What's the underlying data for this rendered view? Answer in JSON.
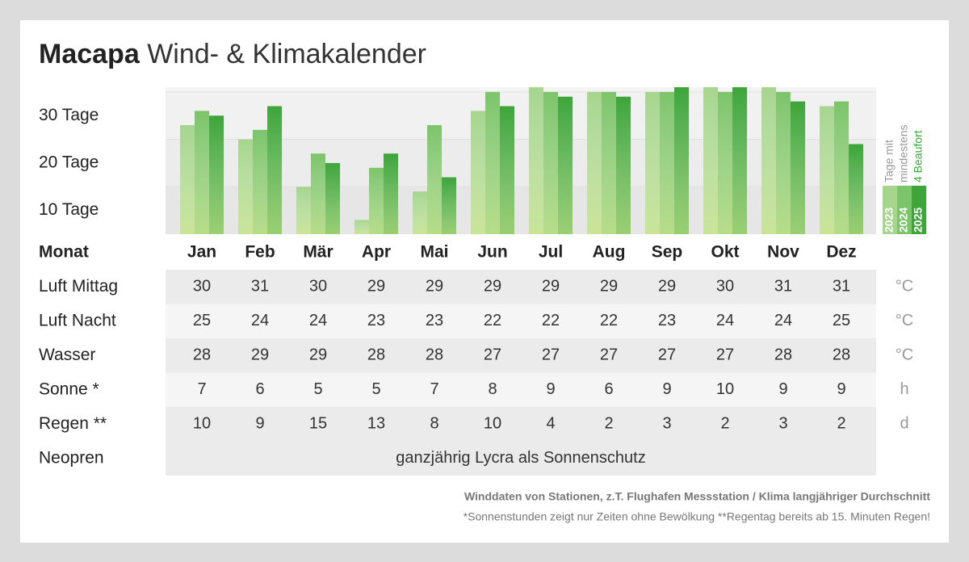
{
  "chart_data": {
    "type": "bar",
    "title": "Macapa",
    "subtitle": "Wind- & Klimakalender",
    "categories": [
      "Jan",
      "Feb",
      "Mär",
      "Apr",
      "Mai",
      "Jun",
      "Jul",
      "Aug",
      "Sep",
      "Okt",
      "Nov",
      "Dez"
    ],
    "series": [
      {
        "name": "2023",
        "color": "#a6d58e",
        "values": [
          23,
          20,
          10,
          3,
          9,
          26,
          31,
          30,
          30,
          31,
          31,
          27
        ]
      },
      {
        "name": "2024",
        "color": "#7cc46a",
        "values": [
          26,
          22,
          17,
          14,
          23,
          30,
          30,
          30,
          30,
          30,
          30,
          28
        ]
      },
      {
        "name": "2025",
        "color": "#3ea53a",
        "values": [
          25,
          27,
          15,
          17,
          12,
          27,
          29,
          29,
          31,
          31,
          28,
          19
        ]
      }
    ],
    "legend_title": [
      "Tage mit",
      "mindestens",
      "4 Beaufort"
    ],
    "ylim": [
      0,
      31
    ],
    "yticks": [
      {
        "value": 10,
        "label": "10 Tage"
      },
      {
        "value": 20,
        "label": "20 Tage"
      },
      {
        "value": 30,
        "label": "30 Tage"
      }
    ],
    "grid": true
  },
  "table": {
    "header": "Monat",
    "rows": [
      {
        "label": "Luft Mittag",
        "values": [
          30,
          31,
          30,
          29,
          29,
          29,
          29,
          29,
          29,
          30,
          31,
          31
        ],
        "unit": "°C"
      },
      {
        "label": "Luft Nacht",
        "values": [
          25,
          24,
          24,
          23,
          23,
          22,
          22,
          22,
          23,
          24,
          24,
          25
        ],
        "unit": "°C"
      },
      {
        "label": "Wasser",
        "values": [
          28,
          29,
          29,
          28,
          28,
          27,
          27,
          27,
          27,
          27,
          28,
          28
        ],
        "unit": "°C"
      },
      {
        "label": "Sonne *",
        "values": [
          7,
          6,
          5,
          5,
          7,
          8,
          9,
          6,
          9,
          10,
          9,
          9
        ],
        "unit": "h"
      },
      {
        "label": "Regen **",
        "values": [
          10,
          9,
          15,
          13,
          8,
          10,
          4,
          2,
          3,
          2,
          3,
          2
        ],
        "unit": "d"
      }
    ],
    "neopren": {
      "label": "Neopren",
      "text": "ganzjährig Lycra als Sonnenschutz"
    }
  },
  "footer": {
    "source": "Winddaten von Stationen, z.T. Flughafen Messstation / Klima langjähriger Durchschnitt",
    "note": "*Sonnenstunden zeigt nur Zeiten ohne Bewölkung  **Regentag bereits ab 15. Minuten Regen!"
  }
}
